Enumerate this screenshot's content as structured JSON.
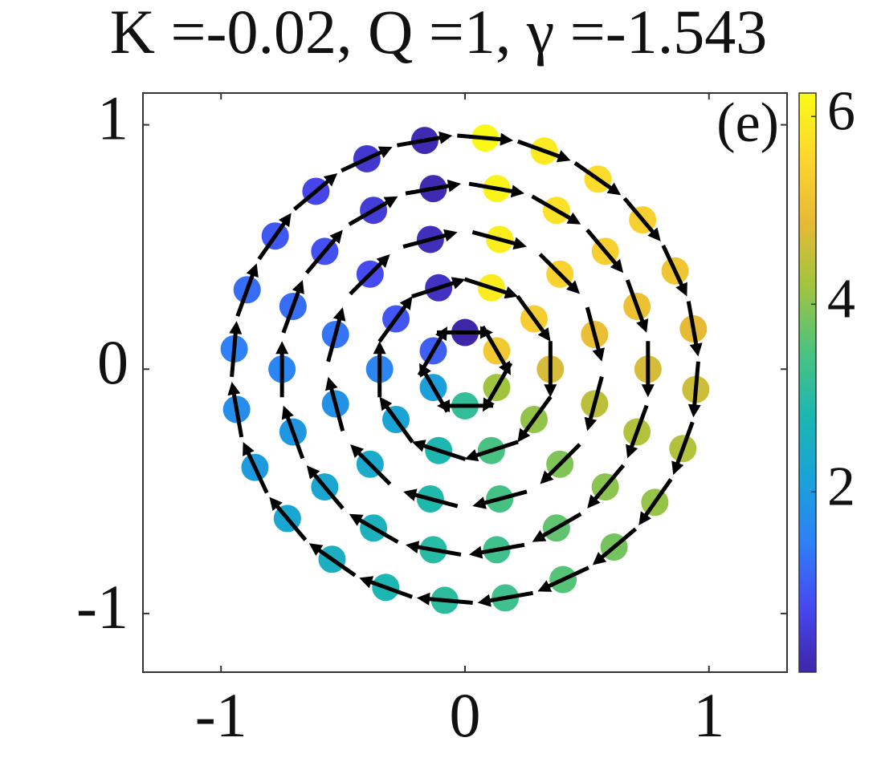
{
  "chart_data": {
    "type": "quiver",
    "title": "K =-0.02, Q =1, γ =-1.543",
    "label": "(e)",
    "x": [
      0.13,
      0,
      -0.13,
      -0.13,
      0,
      0.13,
      0.35,
      0.283,
      0.108,
      -0.108,
      -0.283,
      -0.35,
      -0.283,
      -0.108,
      0.108,
      0.283,
      0.531,
      0.389,
      0.142,
      -0.142,
      -0.389,
      -0.531,
      -0.531,
      -0.389,
      -0.142,
      0.142,
      0.389,
      0.531,
      0.75,
      0.705,
      0.575,
      0.375,
      0.13,
      -0.13,
      -0.375,
      -0.575,
      -0.705,
      -0.75,
      -0.705,
      -0.575,
      -0.375,
      -0.13,
      0.13,
      0.375,
      0.575,
      0.705,
      0.936,
      0.861,
      0.728,
      0.545,
      0.325,
      0.083,
      -0.165,
      -0.402,
      -0.611,
      -0.778,
      -0.893,
      -0.946,
      -0.936,
      -0.861,
      -0.728,
      -0.545,
      -0.325,
      -0.083,
      0.165,
      0.402,
      0.611,
      0.778,
      0.893,
      0.946
    ],
    "values": [
      0.075,
      0.15,
      0.075,
      -0.075,
      -0.15,
      -0.075,
      0,
      0.206,
      0.333,
      0.333,
      0.206,
      0,
      -0.206,
      -0.333,
      -0.333,
      -0.206,
      0.142,
      0.389,
      0.531,
      0.531,
      0.389,
      0.142,
      -0.142,
      -0.389,
      -0.531,
      -0.531,
      -0.389,
      -0.142,
      0,
      0.257,
      0.482,
      0.65,
      0.739,
      0.739,
      0.65,
      0.482,
      0.257,
      0,
      -0.257,
      -0.482,
      -0.65,
      -0.739,
      -0.739,
      -0.65,
      -0.482,
      -0.257,
      0.165,
      0.402,
      0.611,
      0.778,
      0.893,
      0.946,
      0.936,
      0.861,
      0.728,
      0.545,
      0.325,
      0.083,
      -0.165,
      -0.402,
      -0.611,
      -0.778,
      -0.893,
      -0.946,
      -0.936,
      -0.861,
      -0.728,
      -0.545,
      -0.325,
      -0.083
    ],
    "phase": [
      5.236,
      0,
      1.047,
      2.094,
      3.142,
      4.189,
      4.712,
      5.341,
      5.969,
      0.314,
      0.942,
      1.571,
      2.199,
      2.827,
      3.456,
      4.084,
      4.974,
      5.498,
      6.021,
      0.262,
      0.785,
      1.309,
      1.833,
      2.356,
      2.88,
      3.403,
      3.927,
      4.451,
      4.712,
      5.061,
      5.411,
      5.76,
      6.109,
      0.175,
      0.524,
      0.873,
      1.222,
      1.571,
      1.92,
      2.269,
      2.618,
      2.967,
      3.316,
      3.665,
      4.014,
      4.363,
      4.887,
      5.149,
      5.411,
      5.672,
      5.934,
      6.196,
      0.175,
      0.436,
      0.698,
      0.96,
      1.222,
      1.484,
      1.745,
      2.007,
      2.269,
      2.531,
      2.793,
      3.054,
      3.316,
      3.578,
      3.84,
      4.102,
      4.363,
      4.625
    ],
    "xlim": [
      -1.32,
      1.32
    ],
    "ylim": [
      -1.24,
      1.13
    ],
    "xticks": [
      -1,
      0,
      1
    ],
    "yticks": [
      -1,
      0,
      1
    ],
    "clim": [
      0.08,
      6.25
    ],
    "cticks": [
      2,
      4,
      6
    ],
    "colormap": [
      "#3e26a8",
      "#4748f0",
      "#2f7ff7",
      "#1aa2d9",
      "#1db7b0",
      "#4cc37e",
      "#a1c43f",
      "#e7ba36",
      "#fcd62e",
      "#f9fb15"
    ],
    "arrow_color": "#000000"
  }
}
